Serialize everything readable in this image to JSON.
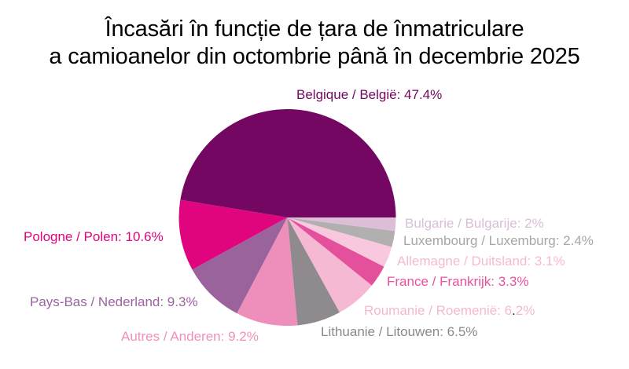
{
  "title": {
    "line1": "Încasări în funcție de țara de înmatriculare",
    "line2": "a camioanelor din octombrie până în decembrie 2025"
  },
  "colors": {
    "background": "#FFFFFF",
    "title_text": "#000000"
  },
  "chart_data": {
    "type": "pie",
    "title": "Încasări în funcție de țara de înmatriculare a camioanelor din octombrie până în decembrie 2025",
    "unit": "%",
    "start_angle_deg": 0,
    "direction": "counterclockwise",
    "legend": "none",
    "slices": [
      {
        "key": "belgique",
        "name": "Belgique / België",
        "value": 47.4,
        "label_text": "Belgique / België: 47.4%",
        "color": "#730761",
        "label_color": "#730761"
      },
      {
        "key": "pologne",
        "name": "Pologne / Polen",
        "value": 10.6,
        "label_text": "Pologne / Polen: 10.6%",
        "color": "#E0047E",
        "label_color": "#E0047E"
      },
      {
        "key": "paysbas",
        "name": "Pays-Bas / Nederland",
        "value": 9.3,
        "label_text": "Pays-Bas / Nederland: 9.3%",
        "color": "#9A639C",
        "label_color": "#9A63A0"
      },
      {
        "key": "autres",
        "name": "Autres / Anderen",
        "value": 9.2,
        "label_text": "Autres / Anderen: 9.2%",
        "color": "#EE8FBB",
        "label_color": "#F08FBC"
      },
      {
        "key": "lithuanie",
        "name": "Lithuanie / Litouwen",
        "value": 6.5,
        "label_text": "Lithuanie / Litouwen: 6.5%",
        "color": "#8F8A8D",
        "label_color": "#8C888B"
      },
      {
        "key": "roumanie",
        "name": "Roumanie / Roemenië",
        "value": 6.2,
        "label_text": "Roumanie / Roemenië: 6.2%",
        "label_parts": [
          "Roumanie / Roemenië: 6",
          ".",
          "2%"
        ],
        "dot_color": "#1c1c1c",
        "color": "#F5B9D3",
        "label_color": "#F5B8D0"
      },
      {
        "key": "france",
        "name": "France / Frankrijk",
        "value": 3.3,
        "label_text": "France / Frankrijk: 3.3%",
        "color": "#E5509C",
        "label_color": "#E8519B"
      },
      {
        "key": "allemagne",
        "name": "Allemagne / Duitsland",
        "value": 3.1,
        "label_text": "Allemagne / Duitsland: 3.1%",
        "color": "#F8C8DF",
        "label_color": "#F6B9D4"
      },
      {
        "key": "luxembourg",
        "name": "Luxembourg / Luxemburg",
        "value": 2.4,
        "label_text": "Luxembourg / Luxemburg: 2.4%",
        "color": "#B2AFB1",
        "label_color": "#A8A5A7"
      },
      {
        "key": "bulgarie",
        "name": "Bulgarie / Bulgarije",
        "value": 2,
        "label_text": "Bulgarie / Bulgarije: 2%",
        "color": "#DCBED7",
        "label_color": "#D9BED7"
      }
    ]
  }
}
